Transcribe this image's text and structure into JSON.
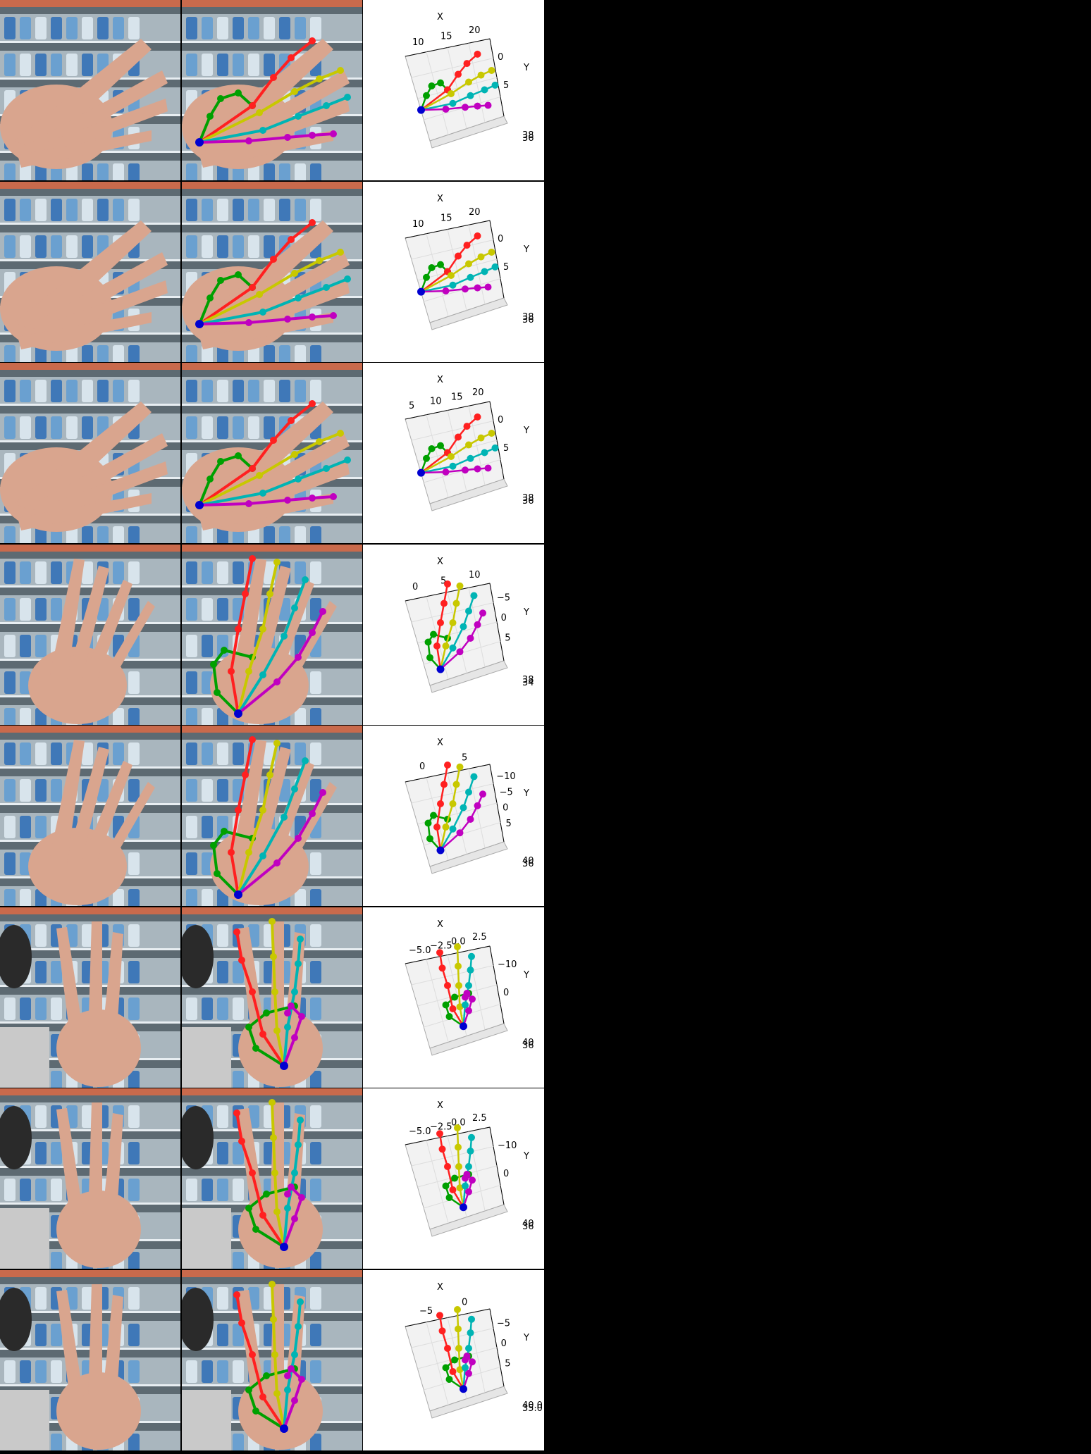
{
  "rows": [
    {
      "x_axis_label": "X",
      "y_axis_label": "Y",
      "x_ticks": [
        "10",
        "15",
        "20"
      ],
      "y_ticks": [
        "0",
        "5"
      ],
      "z_ticks": [
        "38",
        "36"
      ]
    },
    {
      "x_axis_label": "X",
      "y_axis_label": "Y",
      "x_ticks": [
        "10",
        "15",
        "20"
      ],
      "y_ticks": [
        "0",
        "5"
      ],
      "z_ticks": [
        "38",
        "36"
      ]
    },
    {
      "x_axis_label": "X",
      "y_axis_label": "Y",
      "x_ticks": [
        "5",
        "10",
        "15",
        "20"
      ],
      "y_ticks": [
        "0",
        "5"
      ],
      "z_ticks": [
        "38",
        "36"
      ]
    },
    {
      "x_axis_label": "X",
      "y_axis_label": "Y",
      "x_ticks": [
        "0",
        "5",
        "10"
      ],
      "y_ticks": [
        "−5",
        "0",
        "5"
      ],
      "z_ticks": [
        "38",
        "34"
      ]
    },
    {
      "x_axis_label": "X",
      "y_axis_label": "Y",
      "x_ticks": [
        "0",
        "5"
      ],
      "y_ticks": [
        "−10",
        "−5",
        "0",
        "5"
      ],
      "z_ticks": [
        "40",
        "36"
      ]
    },
    {
      "x_axis_label": "X",
      "y_axis_label": "Y",
      "x_ticks": [
        "−5.0",
        "−2.5",
        "0.0",
        "2.5"
      ],
      "y_ticks": [
        "−10",
        "0"
      ],
      "z_ticks": [
        "40",
        "36"
      ]
    },
    {
      "x_axis_label": "X",
      "y_axis_label": "Y",
      "x_ticks": [
        "−5.0",
        "−2.5",
        "0.0",
        "2.5"
      ],
      "y_ticks": [
        "−10",
        "0"
      ],
      "z_ticks": [
        "40",
        "36"
      ]
    },
    {
      "x_axis_label": "X",
      "y_axis_label": "Y",
      "x_ticks": [
        "−5",
        "0"
      ],
      "y_ticks": [
        "−5",
        "0",
        "5"
      ],
      "z_ticks": [
        "40.0",
        "35.0"
      ]
    }
  ],
  "finger_colors": {
    "thumb": "#00a000",
    "index": "#ff2020",
    "middle": "#c8c800",
    "ring": "#00b4b4",
    "pinky": "#c000c0",
    "wrist": "#0000d0"
  }
}
